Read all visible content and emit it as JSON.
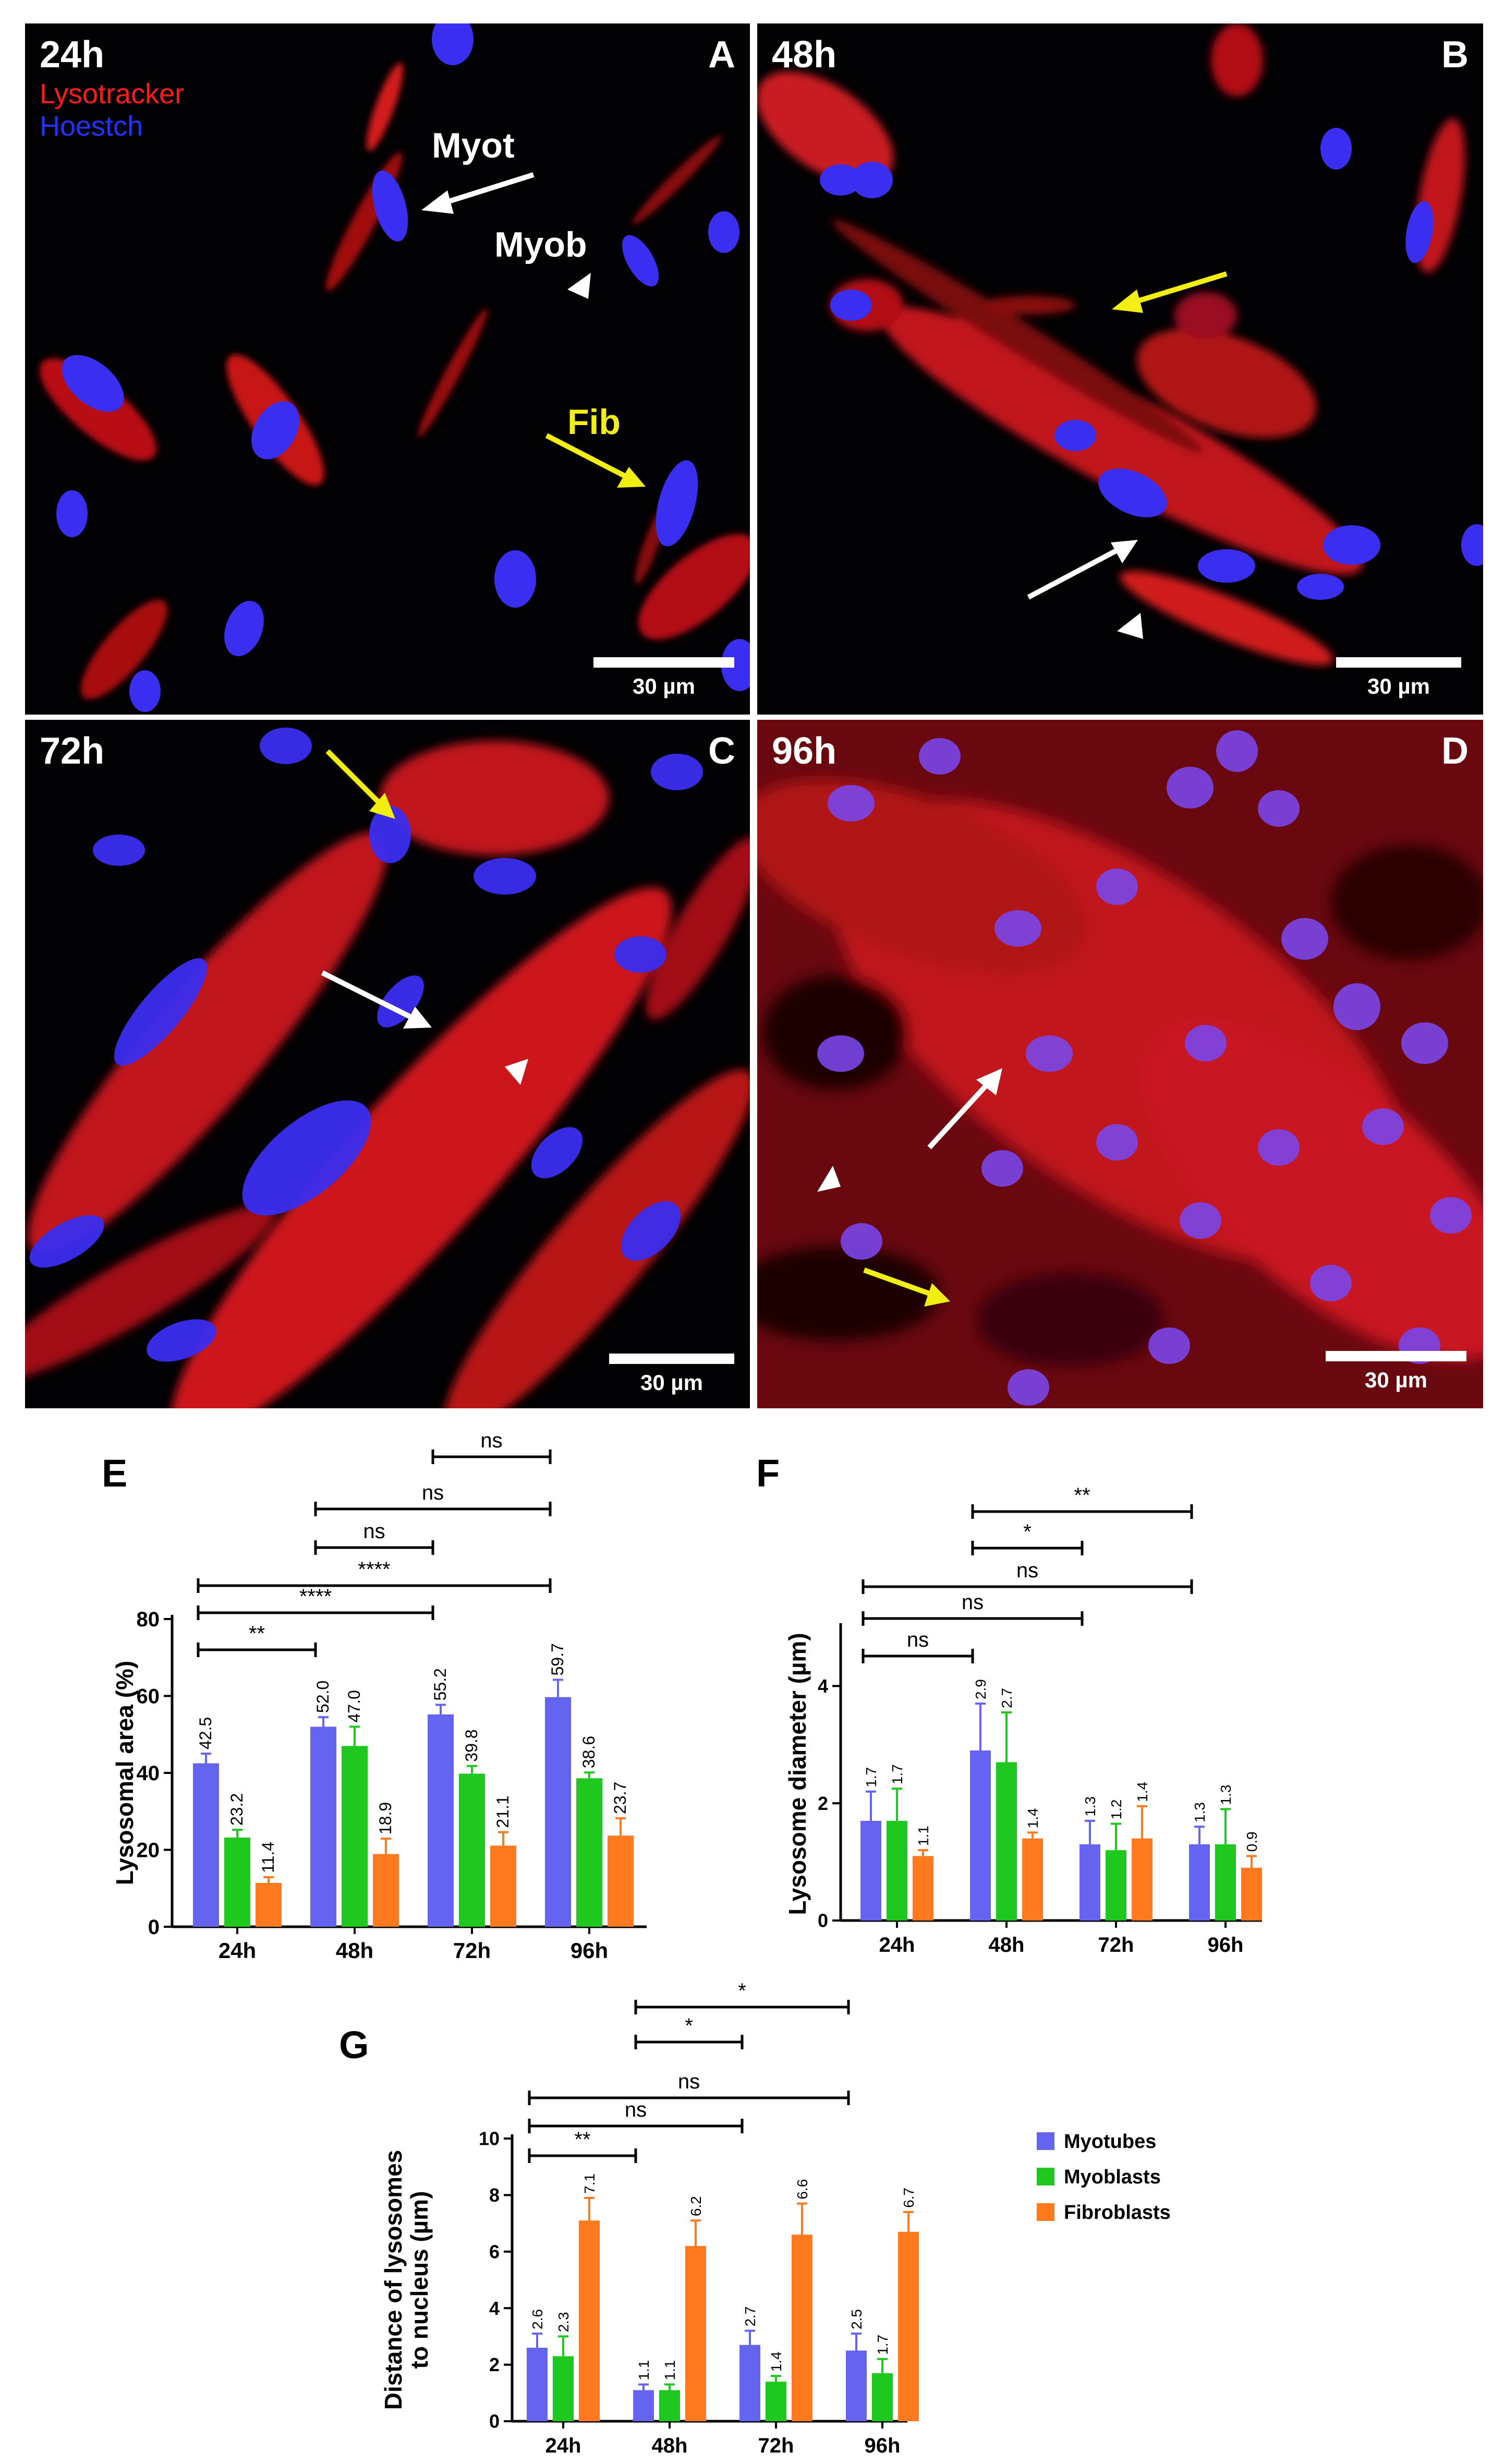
{
  "panels": {
    "A": {
      "time": "24h",
      "letter": "A",
      "legend_lyso": "Lysotracker",
      "legend_hoechst": "Hoestch",
      "label_myot": "Myot",
      "label_myob": "Myob",
      "label_fib": "Fib",
      "scale": "30 µm"
    },
    "B": {
      "time": "48h",
      "letter": "B",
      "scale": "30 µm"
    },
    "C": {
      "time": "72h",
      "letter": "C",
      "scale": "30 µm"
    },
    "D": {
      "time": "96h",
      "letter": "D",
      "scale": "30 µm"
    }
  },
  "colors": {
    "myotubes": "#6464f0",
    "myoblasts": "#1ec81e",
    "fibroblasts": "#ff7a1f",
    "lysotracker": "#ff1a1a",
    "hoechst": "#2233ff",
    "annotation_yellow": "#f2ee12"
  },
  "legend": {
    "items": [
      "Myotubes",
      "Myoblasts",
      "Fibroblasts"
    ]
  },
  "chart_data": [
    {
      "id": "E",
      "type": "bar",
      "letter": "E",
      "ylabel": "Lysosomal area (%)",
      "categories": [
        "24h",
        "48h",
        "72h",
        "96h"
      ],
      "ylim": [
        0,
        80
      ],
      "yticks": [
        0,
        20,
        40,
        60,
        80
      ],
      "series": [
        {
          "name": "Myotubes",
          "values": [
            42.5,
            52.0,
            55.2,
            59.7
          ],
          "labels": [
            "42.5",
            "52.0",
            "55.2",
            "59.7"
          ],
          "errors": [
            2.5,
            2.5,
            2.5,
            4.5
          ]
        },
        {
          "name": "Myoblasts",
          "values": [
            23.2,
            47.0,
            39.8,
            38.6
          ],
          "labels": [
            "23.2",
            "47.0",
            "39.8",
            "38.6"
          ],
          "errors": [
            2,
            5,
            2,
            1.5
          ]
        },
        {
          "name": "Fibroblasts",
          "values": [
            11.4,
            18.9,
            21.1,
            23.7
          ],
          "labels": [
            "11.4",
            "18.9",
            "21.1",
            "23.7"
          ],
          "errors": [
            1.5,
            4,
            3.5,
            4.5
          ]
        }
      ],
      "comparisons": [
        {
          "from": 0,
          "to": 1,
          "label": "**"
        },
        {
          "from": 0,
          "to": 2,
          "label": "****"
        },
        {
          "from": 0,
          "to": 3,
          "label": "****"
        },
        {
          "from": 1,
          "to": 2,
          "label": "ns"
        },
        {
          "from": 1,
          "to": 3,
          "label": "ns"
        },
        {
          "from": 2,
          "to": 3,
          "label": "ns"
        }
      ]
    },
    {
      "id": "F",
      "type": "bar",
      "letter": "F",
      "ylabel": "Lysosome diameter (µm)",
      "categories": [
        "24h",
        "48h",
        "72h",
        "96h"
      ],
      "ylim": [
        0,
        5
      ],
      "yticks": [
        0,
        2,
        4
      ],
      "series": [
        {
          "name": "Myotubes",
          "values": [
            1.7,
            2.9,
            1.3,
            1.3
          ],
          "labels": [
            "1.7",
            "2.9",
            "1.3",
            "1.3"
          ],
          "errors": [
            0.5,
            0.8,
            0.4,
            0.3
          ]
        },
        {
          "name": "Myoblasts",
          "values": [
            1.7,
            2.7,
            1.2,
            1.3
          ],
          "labels": [
            "1.7",
            "2.7",
            "1.2",
            "1.3"
          ],
          "errors": [
            0.55,
            0.85,
            0.45,
            0.6
          ]
        },
        {
          "name": "Fibroblasts",
          "values": [
            1.1,
            1.4,
            1.4,
            0.9
          ],
          "labels": [
            "1.1",
            "1.4",
            "1.4",
            "0.9"
          ],
          "errors": [
            0.1,
            0.1,
            0.55,
            0.2
          ]
        }
      ],
      "comparisons": [
        {
          "from": 0,
          "to": 1,
          "label": "ns"
        },
        {
          "from": 0,
          "to": 2,
          "label": "ns"
        },
        {
          "from": 0,
          "to": 3,
          "label": "ns"
        },
        {
          "from": 1,
          "to": 2,
          "label": "*"
        },
        {
          "from": 1,
          "to": 3,
          "label": "**"
        }
      ]
    },
    {
      "id": "G",
      "type": "bar",
      "letter": "G",
      "ylabel": [
        "Distance of lysosomes",
        "to nucleus (µm)"
      ],
      "categories": [
        "24h",
        "48h",
        "72h",
        "96h"
      ],
      "ylim": [
        0,
        10
      ],
      "yticks": [
        0,
        2,
        4,
        6,
        8,
        10
      ],
      "series": [
        {
          "name": "Myotubes",
          "values": [
            2.6,
            1.1,
            2.7,
            2.5
          ],
          "labels": [
            "2.6",
            "1.1",
            "2.7",
            "2.5"
          ],
          "errors": [
            0.5,
            0.2,
            0.5,
            0.6
          ]
        },
        {
          "name": "Myoblasts",
          "values": [
            2.3,
            1.1,
            1.4,
            1.7
          ],
          "labels": [
            "2.3",
            "1.1",
            "1.4",
            "1.7"
          ],
          "errors": [
            0.7,
            0.2,
            0.2,
            0.5
          ]
        },
        {
          "name": "Fibroblasts",
          "values": [
            7.1,
            6.2,
            6.6,
            6.7
          ],
          "labels": [
            "7.1",
            "6.2",
            "6.6",
            "6.7"
          ],
          "errors": [
            0.8,
            0.9,
            1.1,
            0.7
          ]
        }
      ],
      "comparisons": [
        {
          "from": 0,
          "to": 1,
          "label": "**"
        },
        {
          "from": 0,
          "to": 2,
          "label": "ns"
        },
        {
          "from": 0,
          "to": 3,
          "label": "ns"
        },
        {
          "from": 1,
          "to": 2,
          "label": "*"
        },
        {
          "from": 1,
          "to": 3,
          "label": "*"
        }
      ]
    }
  ]
}
